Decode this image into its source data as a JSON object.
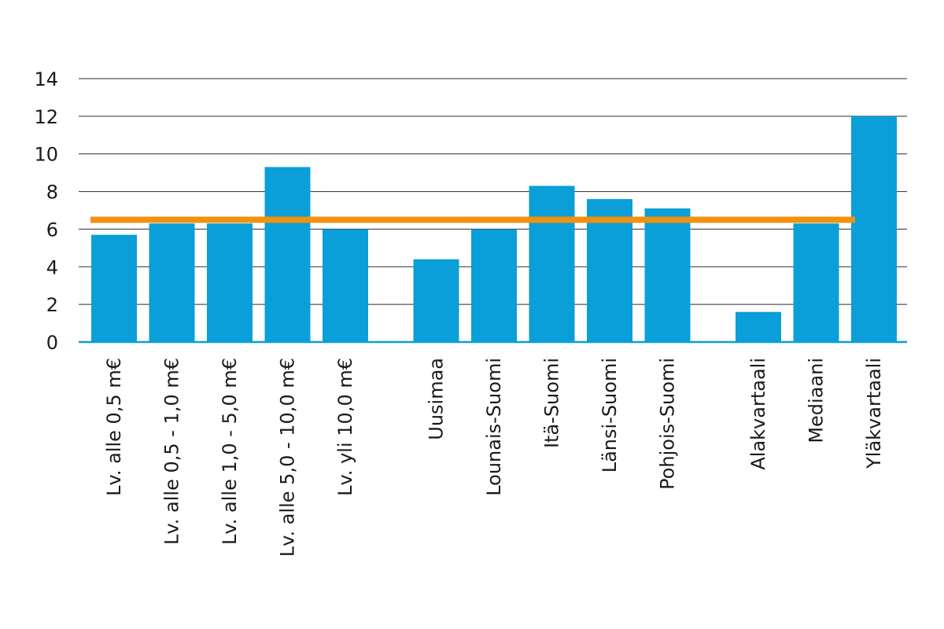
{
  "chart_data": {
    "type": "bar",
    "title": "",
    "xlabel": "",
    "ylabel": "",
    "ylim": [
      0,
      14
    ],
    "yticks": [
      0,
      2,
      4,
      6,
      8,
      10,
      12,
      14
    ],
    "grid": true,
    "groups": [
      [
        "Lv. alle 0,5 m€",
        "Lv. alle 0,5 - 1,0 m€",
        "Lv. alle 1,0 - 5,0 m€",
        "Lv. alle 5,0 - 10,0 m€",
        "Lv. yli 10,0 m€"
      ],
      [
        "Uusimaa",
        "Lounais-Suomi",
        "Itä-Suomi",
        "Länsi-Suomi",
        "Pohjois-Suomi"
      ],
      [
        "Alakvartaali",
        "Mediaani",
        "Yläkvartaali"
      ]
    ],
    "categories": [
      "Lv. alle 0,5 m€",
      "Lv. alle 0,5 - 1,0 m€",
      "Lv. alle 1,0 - 5,0 m€",
      "Lv. alle 5,0 - 10,0 m€",
      "Lv. yli 10,0 m€",
      "Uusimaa",
      "Lounais-Suomi",
      "Itä-Suomi",
      "Länsi-Suomi",
      "Pohjois-Suomi",
      "Alakvartaali",
      "Mediaani",
      "Yläkvartaali"
    ],
    "values": [
      5.7,
      6.3,
      6.3,
      9.3,
      6.0,
      4.4,
      6.0,
      8.3,
      7.6,
      7.1,
      1.6,
      6.3,
      12.0
    ],
    "reference_line": {
      "value": 6.5,
      "color": "#f0920f"
    },
    "colors": {
      "bar": "#0a9fd8",
      "reference": "#f0920f",
      "grid": "#2b2b2b",
      "axis": "#0a9fd8"
    }
  }
}
